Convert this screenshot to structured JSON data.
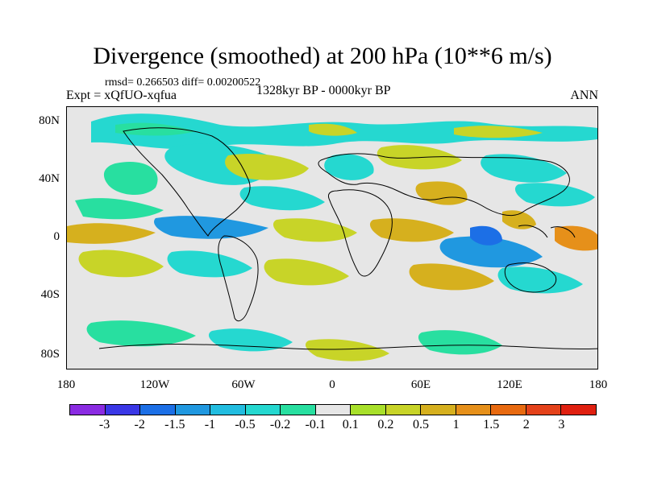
{
  "plot": {
    "title": "Divergence (smoothed) at 200 hPa (10**6 m/s)",
    "stats": "rmsd= 0.266503  diff= 0.00200522",
    "experiment": "Expt = xQfUO-xqfua",
    "period": "1328kyr BP - 0000kyr BP",
    "season": "ANN"
  },
  "axes": {
    "y_ticks": [
      "80N",
      "40N",
      "0",
      "40S",
      "80S"
    ],
    "x_ticks": [
      "180",
      "120W",
      "60W",
      "0",
      "60E",
      "120E",
      "180"
    ]
  },
  "colorbar": {
    "colors": [
      "#8a2be2",
      "#3a37e6",
      "#1c6fe6",
      "#2098e0",
      "#22bde0",
      "#25d8d0",
      "#28dfa0",
      "#e6e6e6",
      "#a8e02a",
      "#c8d428",
      "#d6b01e",
      "#e6901a",
      "#e86a10",
      "#e4421a",
      "#e02010"
    ],
    "labels": [
      "-3",
      "-2",
      "-1.5",
      "-1",
      "-0.5",
      "-0.2",
      "-0.1",
      "0.1",
      "0.2",
      "0.5",
      "1",
      "1.5",
      "2",
      "3"
    ]
  }
}
